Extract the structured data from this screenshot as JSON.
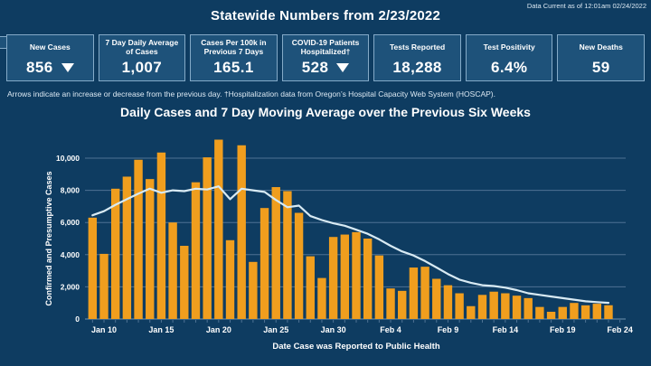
{
  "header": {
    "data_current": "Data Current as of 12:01am 02/24/2022",
    "title": "Statewide Numbers from 2/23/2022"
  },
  "stat_cards": [
    {
      "label": "New Cases",
      "value": "856",
      "arrow": "down"
    },
    {
      "label": "7 Day Daily Average of Cases",
      "value": "1,007",
      "arrow": null
    },
    {
      "label": "Cases Per 100k in Previous 7 Days",
      "value": "165.1",
      "arrow": null
    },
    {
      "label": "COVID-19 Patients Hospitalized†",
      "value": "528",
      "arrow": "down"
    },
    {
      "label": "Tests Reported",
      "value": "18,288",
      "arrow": null
    },
    {
      "label": "Test Positivity",
      "value": "6.4%",
      "arrow": null
    },
    {
      "label": "New Deaths",
      "value": "59",
      "arrow": null
    }
  ],
  "footnote": "Arrows indicate an increase or decrease from the previous day. †Hospitalization data from Oregon’s Hospital Capacity Web System (HOSCAP).",
  "chart_data": {
    "type": "bar",
    "title": "Daily Cases and 7 Day Moving Average over the Previous Six Weeks",
    "xlabel": "Date Case was Reported to Public Health",
    "ylabel": "Confirmed and Presumptive Cases",
    "ylim": [
      0,
      11966
    ],
    "yticks": [
      0,
      2000,
      4000,
      6000,
      8000,
      10000
    ],
    "ytick_labels": [
      "0",
      "2,000",
      "4,000",
      "6,000",
      "8,000",
      "10,000"
    ],
    "grid": "horizontal",
    "legend_position": "none",
    "categories": [
      "Jan 9",
      "Jan 10",
      "Jan 11",
      "Jan 12",
      "Jan 13",
      "Jan 14",
      "Jan 15",
      "Jan 16",
      "Jan 17",
      "Jan 18",
      "Jan 19",
      "Jan 20",
      "Jan 21",
      "Jan 22",
      "Jan 23",
      "Jan 24",
      "Jan 25",
      "Jan 26",
      "Jan 27",
      "Jan 28",
      "Jan 29",
      "Jan 30",
      "Jan 31",
      "Feb 1",
      "Feb 2",
      "Feb 3",
      "Feb 4",
      "Feb 5",
      "Feb 6",
      "Feb 7",
      "Feb 8",
      "Feb 9",
      "Feb 10",
      "Feb 11",
      "Feb 12",
      "Feb 13",
      "Feb 14",
      "Feb 15",
      "Feb 16",
      "Feb 17",
      "Feb 18",
      "Feb 19",
      "Feb 20",
      "Feb 21",
      "Feb 22",
      "Feb 23"
    ],
    "x_axis_tick_labels": [
      "Jan 10",
      "Jan 15",
      "Jan 20",
      "Jan 25",
      "Jan 30",
      "Feb 4",
      "Feb 9",
      "Feb 14",
      "Feb 19",
      "Feb 24"
    ],
    "x_tick_indices": [
      1,
      6,
      11,
      16,
      21,
      26,
      31,
      36,
      41,
      46
    ],
    "series": [
      {
        "name": "Daily Cases",
        "type": "bar",
        "values": [
          6300,
          4050,
          8100,
          8850,
          9900,
          8700,
          10350,
          6000,
          4550,
          8500,
          10050,
          11150,
          4900,
          10800,
          3550,
          6900,
          8200,
          7950,
          6600,
          3900,
          2550,
          5100,
          5250,
          5400,
          5000,
          3950,
          1900,
          1750,
          3200,
          3250,
          2500,
          2100,
          1600,
          800,
          1500,
          1700,
          1600,
          1450,
          1300,
          750,
          450,
          750,
          1000,
          850,
          950,
          856
        ]
      },
      {
        "name": "7 Day Moving Average",
        "type": "line",
        "values": [
          6450,
          6700,
          7100,
          7450,
          7800,
          8100,
          7850,
          8000,
          7950,
          8100,
          8050,
          8250,
          7450,
          8100,
          8000,
          7900,
          7400,
          6950,
          7050,
          6400,
          6150,
          5950,
          5800,
          5550,
          5300,
          4950,
          4550,
          4200,
          3950,
          3600,
          3200,
          2800,
          2450,
          2250,
          2100,
          2050,
          1950,
          1800,
          1600,
          1500,
          1400,
          1300,
          1200,
          1100,
          1050,
          1007
        ]
      }
    ],
    "colors": {
      "background": "#0E3C61",
      "bar": "#F09E1E",
      "line": "#D8EAF3",
      "grid": "#4E7294",
      "baseline": "#6E92AE",
      "axis_text": "#FFFFFF"
    }
  }
}
